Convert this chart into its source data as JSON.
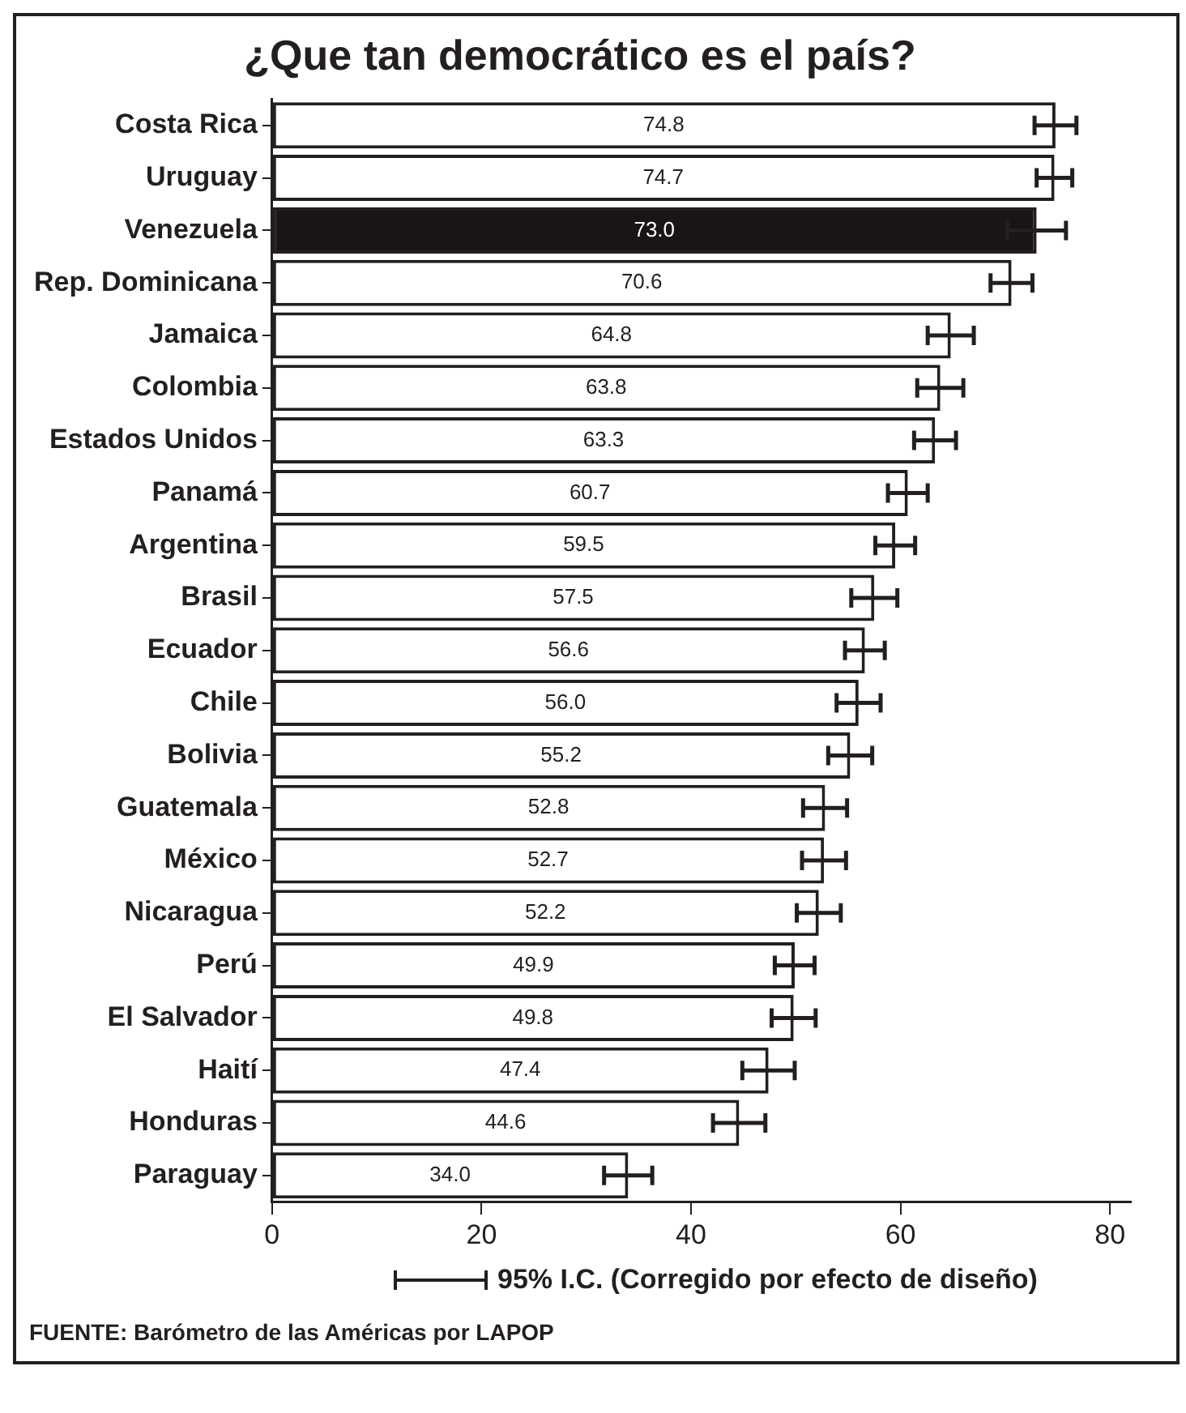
{
  "chart_data": {
    "type": "bar",
    "orientation": "horizontal",
    "title": "¿Que tan democrático es el país?",
    "categories": [
      "Costa Rica",
      "Uruguay",
      "Venezuela",
      "Rep. Dominicana",
      "Jamaica",
      "Colombia",
      "Estados Unidos",
      "Panamá",
      "Argentina",
      "Brasil",
      "Ecuador",
      "Chile",
      "Bolivia",
      "Guatemala",
      "México",
      "Nicaragua",
      "Perú",
      "El Salvador",
      "Haití",
      "Honduras",
      "Paraguay"
    ],
    "values": [
      74.8,
      74.7,
      73.0,
      70.6,
      64.8,
      63.8,
      63.3,
      60.7,
      59.5,
      57.5,
      56.6,
      56.0,
      55.2,
      52.8,
      52.7,
      52.2,
      49.9,
      49.8,
      47.4,
      44.6,
      34.0
    ],
    "errors": [
      2.0,
      1.7,
      2.8,
      2.0,
      2.2,
      2.2,
      2.0,
      1.9,
      1.9,
      2.2,
      1.9,
      2.1,
      2.1,
      2.1,
      2.1,
      2.1,
      1.9,
      2.1,
      2.5,
      2.5,
      2.3
    ],
    "colors": [
      "#ffffff",
      "#ffffff",
      "#1a1414",
      "#ffffff",
      "#ffffff",
      "#ffffff",
      "#ffffff",
      "#ffffff",
      "#ffffff",
      "#ffffff",
      "#ffffff",
      "#ffffff",
      "#ffffff",
      "#ffffff",
      "#ffffff",
      "#ffffff",
      "#ffffff",
      "#ffffff",
      "#ffffff",
      "#ffffff",
      "#ffffff"
    ],
    "value_labels": [
      "74.8",
      "74.7",
      "73.0",
      "70.6",
      "64.8",
      "63.8",
      "63.3",
      "60.7",
      "59.5",
      "57.5",
      "56.6",
      "56.0",
      "55.2",
      "52.8",
      "52.7",
      "52.2",
      "49.9",
      "49.8",
      "47.4",
      "44.6",
      "34.0"
    ],
    "xlim": [
      0,
      82
    ],
    "xticks": [
      0,
      20,
      40,
      60,
      80
    ],
    "grid": false,
    "legend": false,
    "annotations": [
      "95% I.C. (Corregido por efecto de diseño)",
      "FUENTE: Barómetro de las Américas por LAPOP"
    ]
  }
}
